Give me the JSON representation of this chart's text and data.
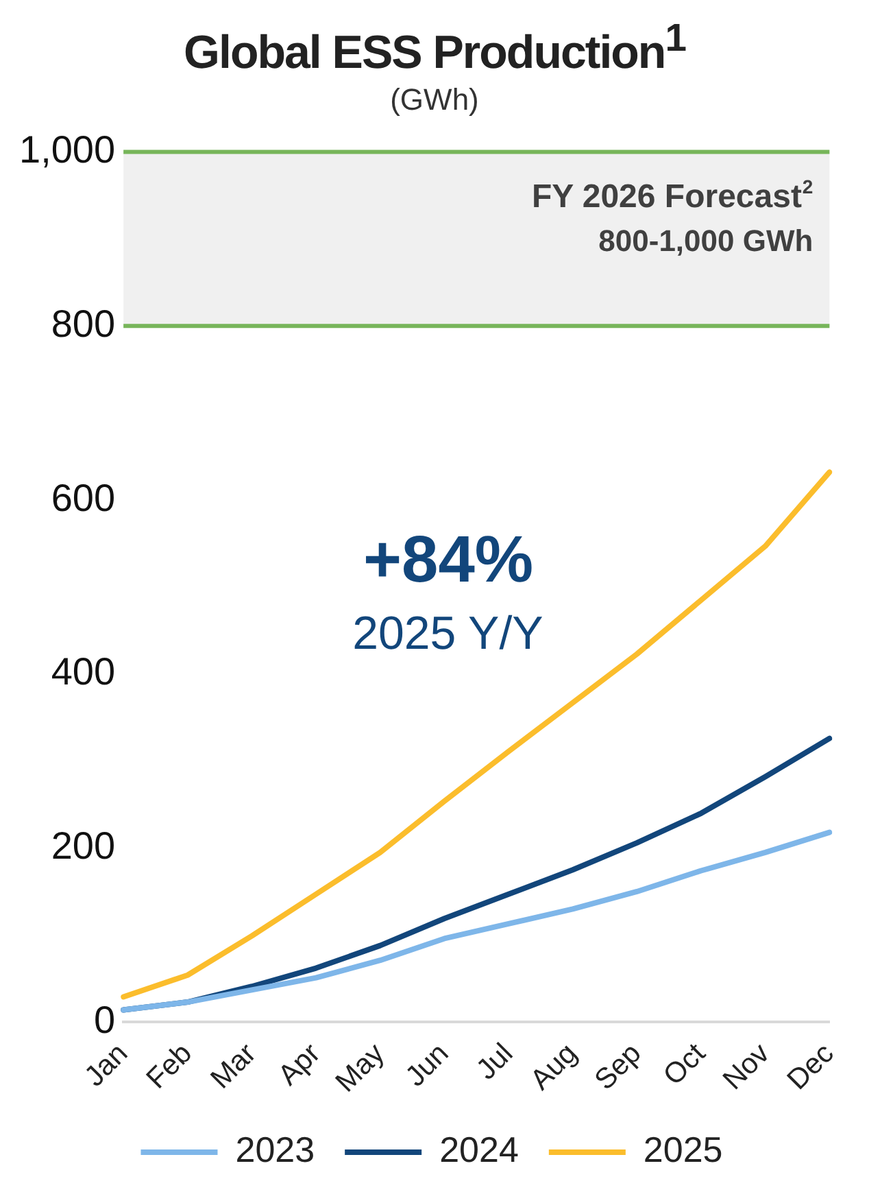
{
  "chart_data": {
    "type": "line",
    "title": "Global ESS Production$^{1}$",
    "subtitle": "(GWh)",
    "categories": [
      "Jan",
      "Feb",
      "Mar",
      "Apr",
      "May",
      "Jun",
      "Jul",
      "Aug",
      "Sep",
      "Oct",
      "Nov",
      "Dec"
    ],
    "series": [
      {
        "name": "2023",
        "color": "#7eb6e9",
        "values": [
          14,
          23,
          37,
          51,
          71,
          96,
          113,
          130,
          150,
          174,
          195,
          218
        ]
      },
      {
        "name": "2024",
        "color": "#12467b",
        "values": [
          14,
          23,
          41,
          62,
          88,
          119,
          147,
          175,
          206,
          240,
          282,
          326
        ]
      },
      {
        "name": "2025",
        "color": "#fbbd2c",
        "values": [
          29,
          54,
          99,
          147,
          195,
          254,
          311,
          367,
          423,
          485,
          547,
          632
        ]
      }
    ],
    "ylim": [
      0,
      1000
    ],
    "yticks": [
      0,
      200,
      400,
      600,
      800,
      {
        "value": 1000,
        "label": "1,000"
      }
    ],
    "grid": false,
    "legend": "bottom",
    "bands": [
      {
        "axis": "y",
        "from": 800,
        "to": 1000,
        "label": "FY 2026 Forecast$^{2}$",
        "color": "#f0f0f0"
      }
    ],
    "ref_lines": [
      {
        "axis": "y",
        "value": 800,
        "color": "#77b55a"
      },
      {
        "axis": "y",
        "value": 1000,
        "color": "#77b55a"
      }
    ],
    "annotations": [
      "+84%",
      "2025 Y/Y",
      "800-1,000 GWh"
    ]
  }
}
